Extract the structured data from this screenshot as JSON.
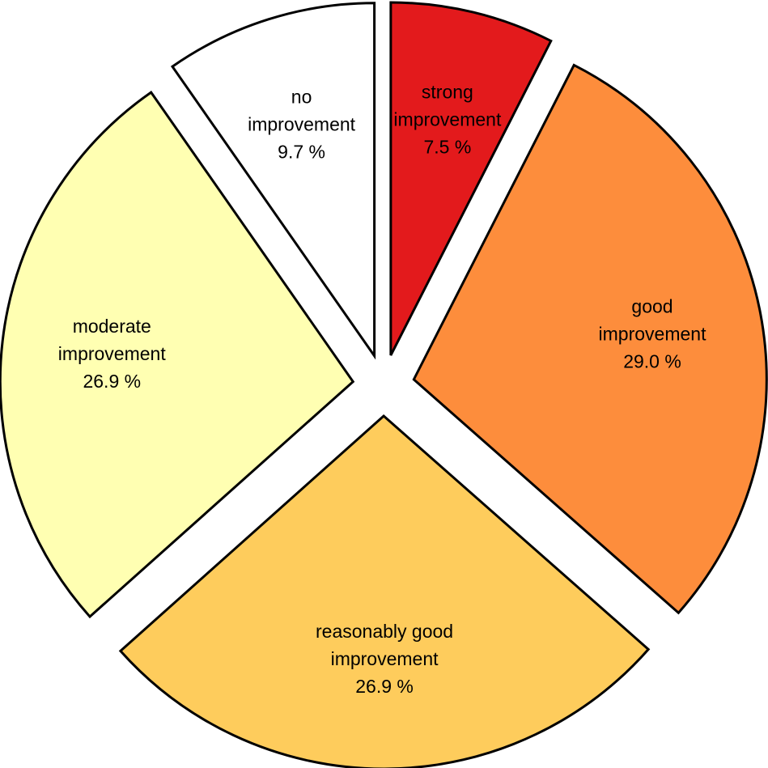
{
  "chart_data": {
    "type": "pie",
    "start": "top",
    "direction": "clockwise",
    "exploded": true,
    "slices": [
      {
        "label_lines": [
          "strong",
          "improvement"
        ],
        "value": 7.5,
        "value_text": "7.5 %",
        "color": "#e31a1c"
      },
      {
        "label_lines": [
          "good",
          "improvement"
        ],
        "value": 29.0,
        "value_text": "29.0 %",
        "color": "#fd8d3c"
      },
      {
        "label_lines": [
          "reasonably good",
          "improvement"
        ],
        "value": 26.9,
        "value_text": "26.9 %",
        "color": "#fecc5c"
      },
      {
        "label_lines": [
          "moderate",
          "improvement"
        ],
        "value": 26.9,
        "value_text": "26.9 %",
        "color": "#ffffb2"
      },
      {
        "label_lines": [
          "no",
          "improvement"
        ],
        "value": 9.7,
        "value_text": "9.7 %",
        "color": "#ffffff"
      }
    ]
  }
}
